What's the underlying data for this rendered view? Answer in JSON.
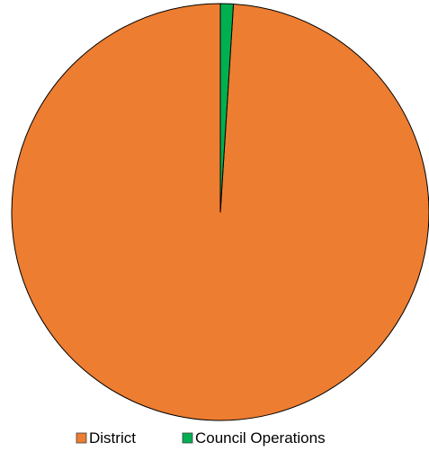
{
  "chart_data": {
    "type": "pie",
    "title": "",
    "slices": [
      {
        "label": "District",
        "value": 99.0,
        "color": "#ED7D31"
      },
      {
        "label": "Council Operations",
        "value": 1.0,
        "color": "#00B050"
      }
    ],
    "start_angle_deg": 0,
    "direction": "counterclockwise",
    "legend": {
      "position": "bottom",
      "entries": [
        "District",
        "Council Operations"
      ]
    }
  }
}
